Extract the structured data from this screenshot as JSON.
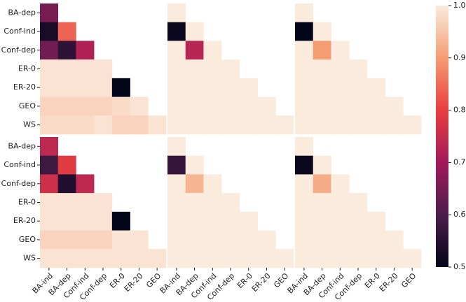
{
  "chart_data": {
    "type": "heatmap",
    "columns": [
      "BA-ind",
      "BA-dep",
      "Conf-ind",
      "Conf-dep",
      "ER-0",
      "ER-20",
      "GEO"
    ],
    "rows": [
      "BA-dep",
      "Conf-ind",
      "Conf-dep",
      "ER-0",
      "ER-20",
      "GEO",
      "WS"
    ],
    "panels": [
      {
        "values": [
          [
            0.65
          ],
          [
            0.53,
            0.84
          ],
          [
            0.64,
            0.56,
            0.72
          ],
          [
            0.99,
            0.99,
            0.99,
            0.99
          ],
          [
            0.99,
            0.99,
            0.99,
            0.99,
            0.5
          ],
          [
            0.97,
            0.97,
            0.97,
            0.97,
            0.98,
            0.99
          ],
          [
            0.98,
            0.98,
            0.98,
            0.99,
            0.97,
            0.97,
            0.99
          ]
        ]
      },
      {
        "values": [
          [
            1.0
          ],
          [
            0.51,
            1.0
          ],
          [
            1.0,
            0.73,
            1.0
          ],
          [
            1.0,
            1.0,
            1.0,
            1.0
          ],
          [
            1.0,
            1.0,
            1.0,
            1.0,
            1.0
          ],
          [
            1.0,
            1.0,
            1.0,
            1.0,
            1.0,
            1.0
          ],
          [
            1.0,
            1.0,
            1.0,
            1.0,
            1.0,
            1.0,
            1.0
          ]
        ]
      },
      {
        "values": [
          [
            1.0
          ],
          [
            0.5,
            1.0
          ],
          [
            1.0,
            0.9,
            1.0
          ],
          [
            1.0,
            1.0,
            1.0,
            1.0
          ],
          [
            1.0,
            1.0,
            1.0,
            1.0,
            1.0
          ],
          [
            1.0,
            1.0,
            1.0,
            1.0,
            1.0,
            1.0
          ],
          [
            1.0,
            1.0,
            1.0,
            1.0,
            1.0,
            1.0,
            1.0
          ]
        ]
      },
      {
        "values": [
          [
            0.74
          ],
          [
            0.58,
            0.79
          ],
          [
            0.76,
            0.54,
            0.74
          ],
          [
            0.99,
            0.99,
            0.99,
            0.99
          ],
          [
            0.99,
            0.99,
            0.99,
            0.99,
            0.5
          ],
          [
            0.97,
            0.97,
            0.97,
            0.97,
            0.99,
            0.99
          ],
          [
            0.99,
            0.99,
            0.99,
            0.99,
            0.99,
            0.99,
            0.99
          ]
        ]
      },
      {
        "values": [
          [
            1.0
          ],
          [
            0.57,
            1.0
          ],
          [
            1.0,
            0.93,
            1.0
          ],
          [
            1.0,
            1.0,
            1.0,
            1.0
          ],
          [
            1.0,
            1.0,
            1.0,
            1.0,
            1.0
          ],
          [
            1.0,
            1.0,
            1.0,
            1.0,
            1.0,
            1.0
          ],
          [
            1.0,
            1.0,
            1.0,
            1.0,
            1.0,
            1.0,
            1.0
          ]
        ]
      },
      {
        "values": [
          [
            1.0
          ],
          [
            0.51,
            1.0
          ],
          [
            1.0,
            0.92,
            1.0
          ],
          [
            1.0,
            1.0,
            1.0,
            1.0
          ],
          [
            1.0,
            1.0,
            1.0,
            1.0,
            1.0
          ],
          [
            1.0,
            1.0,
            1.0,
            1.0,
            1.0,
            1.0
          ],
          [
            1.0,
            1.0,
            1.0,
            1.0,
            1.0,
            1.0,
            1.0
          ]
        ]
      }
    ],
    "colorbar": {
      "lim": [
        0.5,
        1.0
      ],
      "ticks": [
        0.5,
        0.6,
        0.7,
        0.8,
        0.9,
        {
          "value": 1.0,
          "label": "1.0"
        }
      ],
      "colormap": "rocket"
    }
  }
}
